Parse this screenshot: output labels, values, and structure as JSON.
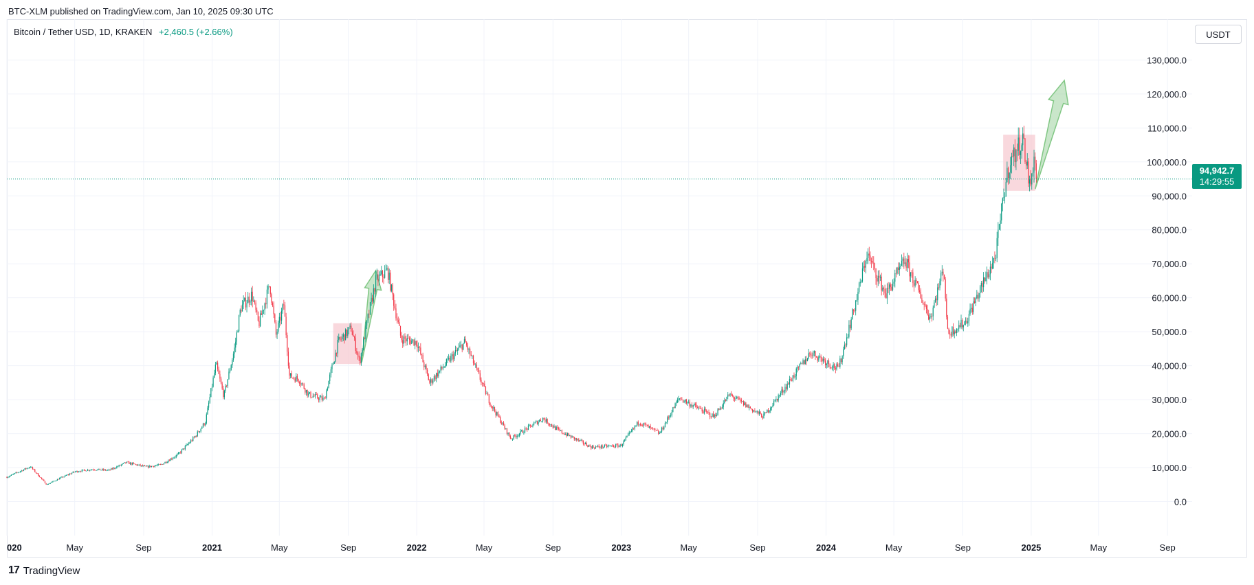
{
  "header": {
    "published": "BTC-XLM published on TradingView.com, Jan 10, 2025 09:30 UTC",
    "symbol": "Bitcoin / Tether USD, 1D, KRAKEN",
    "change": "+2,460.5 (+2.66%)",
    "currency": "USDT"
  },
  "last_price": {
    "value": "94,942.7",
    "countdown": "14:29:55",
    "color": "#089981"
  },
  "footer": {
    "logo_mark": "17",
    "logo_text": "TradingView"
  },
  "colors": {
    "up": "#089981",
    "down": "#f23645",
    "grid": "#f0f3fa",
    "box_fill": "#f7c7ce",
    "arrow_fill": "#a5d6a7",
    "arrow_stroke": "#81c784"
  },
  "chart_data": {
    "type": "candlestick",
    "title": "Bitcoin / Tether USD, 1D, KRAKEN",
    "x_range": [
      "2020-01-01",
      "2025-10-15"
    ],
    "ylim": [
      -10000,
      142000
    ],
    "y_ticks": [
      0,
      10000,
      20000,
      30000,
      40000,
      50000,
      60000,
      70000,
      80000,
      90000,
      100000,
      110000,
      120000,
      130000
    ],
    "y_tick_labels": [
      "0.0",
      "10,000.0",
      "20,000.0",
      "30,000.0",
      "40,000.0",
      "50,000.0",
      "60,000.0",
      "70,000.0",
      "80,000.0",
      "90,000.0",
      "100,000.0",
      "110,000.0",
      "120,000.0",
      "130,000.0"
    ],
    "x_ticks": [
      {
        "date": "2020-01-01",
        "label": "020"
      },
      {
        "date": "2020-05-01",
        "label": "May"
      },
      {
        "date": "2020-09-01",
        "label": "Sep"
      },
      {
        "date": "2021-01-01",
        "label": "2021"
      },
      {
        "date": "2021-05-01",
        "label": "May"
      },
      {
        "date": "2021-09-01",
        "label": "Sep"
      },
      {
        "date": "2022-01-01",
        "label": "2022"
      },
      {
        "date": "2022-05-01",
        "label": "May"
      },
      {
        "date": "2022-09-01",
        "label": "Sep"
      },
      {
        "date": "2023-01-01",
        "label": "2023"
      },
      {
        "date": "2023-05-01",
        "label": "May"
      },
      {
        "date": "2023-09-01",
        "label": "Sep"
      },
      {
        "date": "2024-01-01",
        "label": "2024"
      },
      {
        "date": "2024-05-01",
        "label": "May"
      },
      {
        "date": "2024-09-01",
        "label": "Sep"
      },
      {
        "date": "2025-01-01",
        "label": "2025"
      },
      {
        "date": "2025-05-01",
        "label": "May"
      },
      {
        "date": "2025-09-01",
        "label": "Sep"
      }
    ],
    "price_path": [
      [
        "2020-01-01",
        7200
      ],
      [
        "2020-02-12",
        10300
      ],
      [
        "2020-03-12",
        5000
      ],
      [
        "2020-04-01",
        6600
      ],
      [
        "2020-05-01",
        8800
      ],
      [
        "2020-06-01",
        9500
      ],
      [
        "2020-07-01",
        9200
      ],
      [
        "2020-08-01",
        11500
      ],
      [
        "2020-09-05",
        10200
      ],
      [
        "2020-10-01",
        10800
      ],
      [
        "2020-11-01",
        13800
      ],
      [
        "2020-12-01",
        19000
      ],
      [
        "2020-12-20",
        23500
      ],
      [
        "2021-01-08",
        40500
      ],
      [
        "2021-01-22",
        31000
      ],
      [
        "2021-02-10",
        45000
      ],
      [
        "2021-02-21",
        57000
      ],
      [
        "2021-03-13",
        61000
      ],
      [
        "2021-03-25",
        52000
      ],
      [
        "2021-04-14",
        64000
      ],
      [
        "2021-04-25",
        49000
      ],
      [
        "2021-05-09",
        58000
      ],
      [
        "2021-05-19",
        37000
      ],
      [
        "2021-06-05",
        36000
      ],
      [
        "2021-06-22",
        31500
      ],
      [
        "2021-07-20",
        30000
      ],
      [
        "2021-08-14",
        47000
      ],
      [
        "2021-09-06",
        51000
      ],
      [
        "2021-09-21",
        41000
      ],
      [
        "2021-10-06",
        54000
      ],
      [
        "2021-10-20",
        65000
      ],
      [
        "2021-11-10",
        68000
      ],
      [
        "2021-12-04",
        48000
      ],
      [
        "2022-01-01",
        47000
      ],
      [
        "2022-01-24",
        35000
      ],
      [
        "2022-03-28",
        47000
      ],
      [
        "2022-05-12",
        29000
      ],
      [
        "2022-06-18",
        18500
      ],
      [
        "2022-08-14",
        24500
      ],
      [
        "2022-09-10",
        21000
      ],
      [
        "2022-11-09",
        16000
      ],
      [
        "2022-12-31",
        16500
      ],
      [
        "2023-02-01",
        23500
      ],
      [
        "2023-03-10",
        20000
      ],
      [
        "2023-04-14",
        30500
      ],
      [
        "2023-06-15",
        25000
      ],
      [
        "2023-07-13",
        31500
      ],
      [
        "2023-09-11",
        25000
      ],
      [
        "2023-10-24",
        34500
      ],
      [
        "2023-12-05",
        44000
      ],
      [
        "2024-01-23",
        39000
      ],
      [
        "2024-02-28",
        62000
      ],
      [
        "2024-03-14",
        73000
      ],
      [
        "2024-04-17",
        61000
      ],
      [
        "2024-05-21",
        71000
      ],
      [
        "2024-07-05",
        54000
      ],
      [
        "2024-07-29",
        69000
      ],
      [
        "2024-08-05",
        49500
      ],
      [
        "2024-09-06",
        53000
      ],
      [
        "2024-10-29",
        72000
      ],
      [
        "2024-11-13",
        90000
      ],
      [
        "2024-11-22",
        99000
      ],
      [
        "2024-12-17",
        107000
      ],
      [
        "2024-12-30",
        92000
      ],
      [
        "2025-01-06",
        102000
      ],
      [
        "2025-01-10",
        94942.7
      ]
    ],
    "last_price": 94942.7,
    "annotations": [
      {
        "kind": "rect",
        "from": "2021-08-05",
        "to": "2021-09-25",
        "y_low": 40500,
        "y_high": 52500
      },
      {
        "kind": "arrow",
        "from": "2021-09-25",
        "to": "2021-10-20",
        "y_from": 41000,
        "y_to": 68000
      },
      {
        "kind": "rect",
        "from": "2024-11-12",
        "to": "2025-01-08",
        "y_low": 91500,
        "y_high": 108000
      },
      {
        "kind": "arrow",
        "from": "2025-01-08",
        "to": "2025-03-01",
        "y_from": 92000,
        "y_to": 124000
      }
    ]
  }
}
